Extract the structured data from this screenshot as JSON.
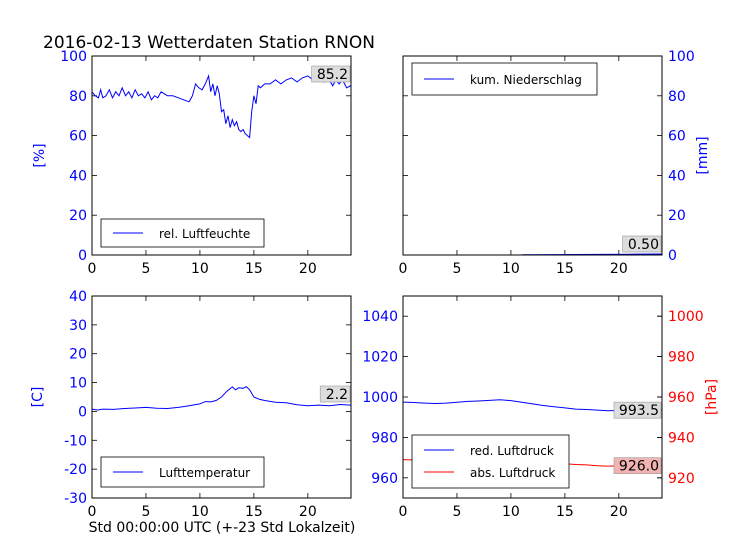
{
  "title": "2016-02-13 Wetterdaten Station RNON",
  "xlabel": "Std 00:00:00 UTC (+-23 Std Lokalzeit)",
  "colors": {
    "blue": "#0000ff",
    "red": "#ff0000",
    "black": "#000000",
    "annot_face": "#dddddd",
    "annot_red_face": "#f2b3b3"
  },
  "chart_data": [
    {
      "id": "humidity",
      "type": "line",
      "ylabel": "[%]",
      "xlim": [
        0,
        24
      ],
      "ylim": [
        0,
        100
      ],
      "xticks": [
        0,
        5,
        10,
        15,
        20
      ],
      "yticks": [
        0,
        20,
        40,
        60,
        80,
        100
      ],
      "legend": "lower-left",
      "annotation": "85.2",
      "series": [
        {
          "name": "rel. Luftfeuchte",
          "color": "#0000ff",
          "points": [
            [
              0,
              82
            ],
            [
              0.3,
              80
            ],
            [
              0.6,
              79
            ],
            [
              0.8,
              83
            ],
            [
              1.0,
              79
            ],
            [
              1.3,
              80
            ],
            [
              1.6,
              83
            ],
            [
              1.9,
              79
            ],
            [
              2.2,
              82
            ],
            [
              2.5,
              80
            ],
            [
              2.8,
              84
            ],
            [
              3.1,
              80
            ],
            [
              3.4,
              82
            ],
            [
              3.7,
              79
            ],
            [
              4.0,
              83
            ],
            [
              4.3,
              80
            ],
            [
              4.6,
              81
            ],
            [
              4.9,
              79
            ],
            [
              5.2,
              82
            ],
            [
              5.5,
              78
            ],
            [
              5.8,
              80
            ],
            [
              6.1,
              79
            ],
            [
              6.4,
              82
            ],
            [
              6.7,
              81
            ],
            [
              7.0,
              80
            ],
            [
              7.5,
              80
            ],
            [
              8.0,
              79
            ],
            [
              8.5,
              78
            ],
            [
              9.0,
              77
            ],
            [
              9.3,
              80
            ],
            [
              9.6,
              86
            ],
            [
              9.9,
              84
            ],
            [
              10.2,
              83
            ],
            [
              10.5,
              86
            ],
            [
              10.8,
              90
            ],
            [
              11.0,
              82
            ],
            [
              11.2,
              86
            ],
            [
              11.4,
              80
            ],
            [
              11.6,
              85
            ],
            [
              11.8,
              81
            ],
            [
              12.0,
              72
            ],
            [
              12.2,
              73
            ],
            [
              12.4,
              66
            ],
            [
              12.6,
              70
            ],
            [
              12.8,
              64
            ],
            [
              13.0,
              68
            ],
            [
              13.2,
              65
            ],
            [
              13.4,
              67
            ],
            [
              13.6,
              63
            ],
            [
              13.8,
              62
            ],
            [
              14.0,
              63
            ],
            [
              14.2,
              61
            ],
            [
              14.4,
              60
            ],
            [
              14.6,
              59
            ],
            [
              14.8,
              72
            ],
            [
              15.0,
              80
            ],
            [
              15.2,
              76
            ],
            [
              15.4,
              85
            ],
            [
              15.6,
              84
            ],
            [
              16.0,
              86
            ],
            [
              16.5,
              86
            ],
            [
              17.0,
              88
            ],
            [
              17.5,
              86
            ],
            [
              18.0,
              88
            ],
            [
              18.5,
              89
            ],
            [
              19.0,
              87
            ],
            [
              19.5,
              89
            ],
            [
              20.0,
              90
            ],
            [
              20.5,
              88
            ],
            [
              21.0,
              89
            ],
            [
              21.5,
              87
            ],
            [
              22.0,
              88
            ],
            [
              22.3,
              85
            ],
            [
              22.6,
              88
            ],
            [
              22.9,
              86
            ],
            [
              23.2,
              88
            ],
            [
              23.6,
              84
            ],
            [
              24,
              85.2
            ]
          ]
        }
      ]
    },
    {
      "id": "precip",
      "type": "line",
      "ylabel": "[mm]",
      "ylabel_side": "right",
      "xlim": [
        0,
        24
      ],
      "ylim": [
        0,
        100
      ],
      "xticks": [
        0,
        5,
        10,
        15,
        20
      ],
      "yticks": [
        0,
        20,
        40,
        60,
        80,
        100
      ],
      "legend": "top-left",
      "annotation": "0.50",
      "series": [
        {
          "name": "kum. Niederschlag",
          "color": "#0000ff",
          "points": [
            [
              0,
              0
            ],
            [
              11,
              0
            ],
            [
              11.1,
              0.1
            ],
            [
              14,
              0.2
            ],
            [
              18,
              0.3
            ],
            [
              21,
              0.4
            ],
            [
              24,
              0.5
            ]
          ]
        }
      ]
    },
    {
      "id": "temperature",
      "type": "line",
      "ylabel": "[C]",
      "xlim": [
        0,
        24
      ],
      "ylim": [
        -30,
        40
      ],
      "xticks": [
        0,
        5,
        10,
        15,
        20
      ],
      "yticks": [
        -30,
        -20,
        -10,
        0,
        10,
        20,
        30,
        40
      ],
      "legend": "lower-left",
      "annotation": "2.2",
      "series": [
        {
          "name": "Lufttemperatur",
          "color": "#0000ff",
          "points": [
            [
              0,
              0.8
            ],
            [
              0.5,
              0.5
            ],
            [
              1,
              0.8
            ],
            [
              2,
              0.7
            ],
            [
              3,
              1
            ],
            [
              4,
              1.2
            ],
            [
              5,
              1.4
            ],
            [
              6,
              1.1
            ],
            [
              7,
              1.0
            ],
            [
              8,
              1.4
            ],
            [
              9,
              2
            ],
            [
              10,
              2.6
            ],
            [
              10.5,
              3.4
            ],
            [
              11,
              3.3
            ],
            [
              11.5,
              3.8
            ],
            [
              12,
              5
            ],
            [
              12.5,
              7
            ],
            [
              13,
              8.5
            ],
            [
              13.3,
              7.5
            ],
            [
              13.6,
              8.2
            ],
            [
              14,
              8.0
            ],
            [
              14.3,
              8.6
            ],
            [
              14.6,
              7.5
            ],
            [
              15,
              5
            ],
            [
              15.5,
              4.2
            ],
            [
              16,
              3.8
            ],
            [
              17,
              3.2
            ],
            [
              18,
              3.0
            ],
            [
              19,
              2.3
            ],
            [
              20,
              2.0
            ],
            [
              21,
              2.2
            ],
            [
              22,
              2.0
            ],
            [
              23,
              2.4
            ],
            [
              24,
              2.2
            ]
          ]
        }
      ]
    },
    {
      "id": "pressure",
      "type": "line",
      "ylabel": "[hPa]",
      "ylabel_side": "right",
      "xlim": [
        0,
        24
      ],
      "ylim": [
        950,
        1050
      ],
      "yticks": [
        960,
        980,
        1000,
        1020,
        1040
      ],
      "y2lim": [
        910,
        1010
      ],
      "y2ticks": [
        920,
        940,
        960,
        980,
        1000
      ],
      "xticks": [
        0,
        5,
        10,
        15,
        20
      ],
      "legend": "lower-left",
      "series": [
        {
          "name": "red. Luftdruck",
          "color": "#0000ff",
          "axis": "left",
          "annotation": "993.5",
          "points": [
            [
              0,
              997.5
            ],
            [
              1,
              997.3
            ],
            [
              2,
              997.0
            ],
            [
              3,
              996.8
            ],
            [
              4,
              997.0
            ],
            [
              5,
              997.4
            ],
            [
              6,
              997.8
            ],
            [
              7,
              998.0
            ],
            [
              8,
              998.3
            ],
            [
              9,
              998.6
            ],
            [
              10,
              998.2
            ],
            [
              11,
              997.4
            ],
            [
              12,
              996.6
            ],
            [
              13,
              995.8
            ],
            [
              14,
              995.2
            ],
            [
              15,
              994.6
            ],
            [
              16,
              994.0
            ],
            [
              17,
              993.8
            ],
            [
              18,
              993.5
            ],
            [
              19,
              993.2
            ],
            [
              20,
              993.3
            ],
            [
              21,
              993.5
            ],
            [
              22,
              993.4
            ],
            [
              23,
              993.6
            ],
            [
              24,
              993.5
            ]
          ]
        },
        {
          "name": "abs. Luftdruck",
          "color": "#ff0000",
          "axis": "right",
          "annotation": "926.0",
          "points": [
            [
              0,
              929.0
            ],
            [
              1,
              928.8
            ],
            [
              2,
              928.6
            ],
            [
              3,
              928.5
            ],
            [
              4,
              928.7
            ],
            [
              5,
              929.0
            ],
            [
              6,
              929.2
            ],
            [
              7,
              929.5
            ],
            [
              8,
              929.7
            ],
            [
              9,
              929.9
            ],
            [
              10,
              929.6
            ],
            [
              11,
              929.0
            ],
            [
              12,
              928.4
            ],
            [
              13,
              927.9
            ],
            [
              14,
              927.5
            ],
            [
              15,
              927.0
            ],
            [
              16,
              926.6
            ],
            [
              17,
              926.4
            ],
            [
              18,
              926.0
            ],
            [
              19,
              925.8
            ],
            [
              20,
              925.9
            ],
            [
              21,
              926.0
            ],
            [
              22,
              925.9
            ],
            [
              23,
              926.1
            ],
            [
              24,
              926.0
            ]
          ]
        }
      ]
    }
  ]
}
